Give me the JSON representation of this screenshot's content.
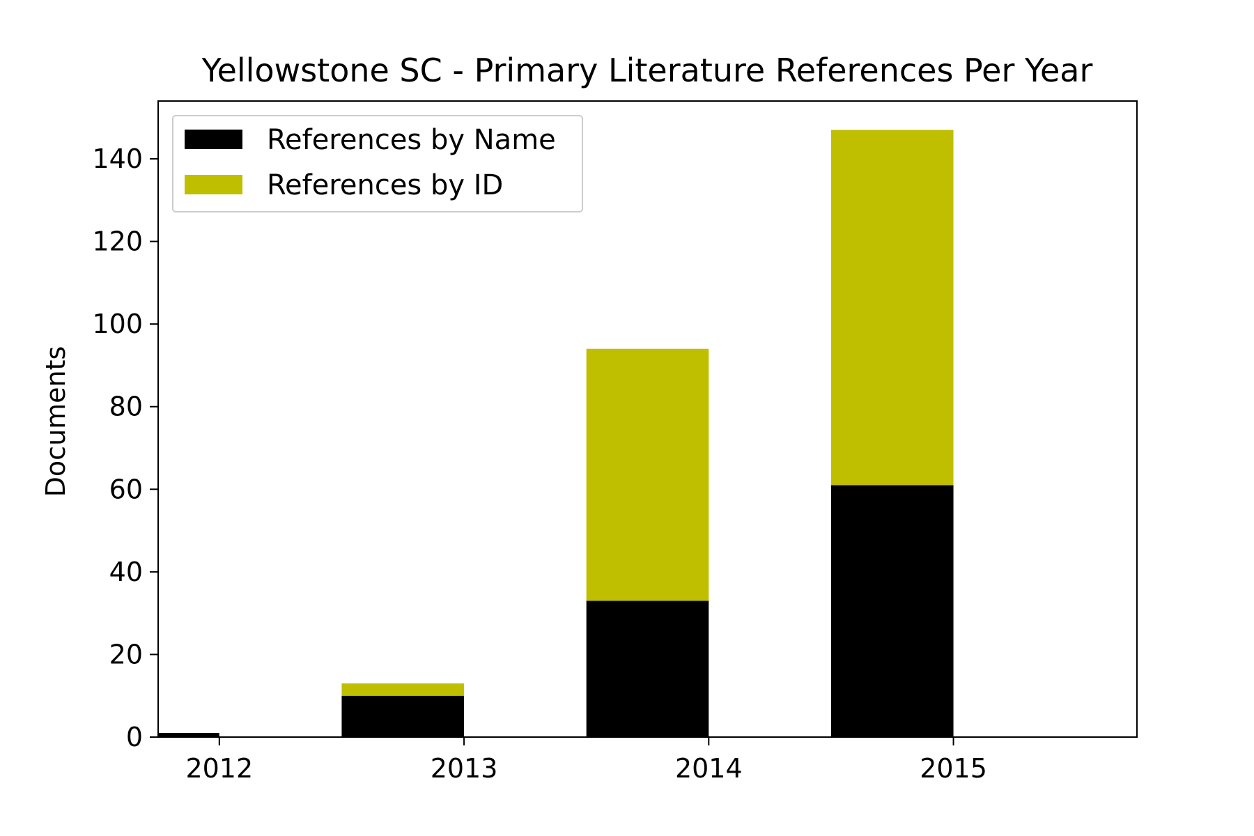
{
  "chart_data": {
    "type": "bar",
    "stacked": true,
    "title": "Yellowstone SC - Primary Literature References Per Year",
    "xlabel": "",
    "ylabel": "Documents",
    "categories": [
      "2012",
      "2013",
      "2014",
      "2015"
    ],
    "series": [
      {
        "name": "References by Name",
        "color": "#000000",
        "values": [
          1,
          10,
          33,
          61
        ]
      },
      {
        "name": "References by ID",
        "color": "#bfbf00",
        "values": [
          0,
          3,
          61,
          86
        ]
      }
    ],
    "ylim": [
      0,
      154
    ],
    "yticks": [
      0,
      20,
      40,
      60,
      80,
      100,
      120,
      140
    ],
    "xlim": [
      2011.75,
      2015.75
    ],
    "bar_alignment": "left-of-tick",
    "grid": false,
    "legend_position": "upper-left"
  }
}
